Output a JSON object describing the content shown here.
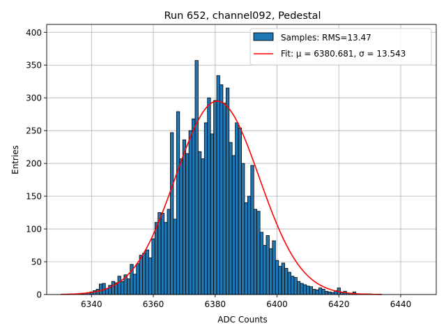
{
  "chart_data": {
    "type": "bar",
    "title": "Run 652, channel092, Pedestal",
    "xlabel": "ADC Counts",
    "ylabel": "Entries",
    "xlim": [
      6325.5,
      6451.5
    ],
    "ylim": [
      0,
      412
    ],
    "xticks": [
      6340,
      6360,
      6380,
      6400,
      6420,
      6440
    ],
    "yticks": [
      0,
      50,
      100,
      150,
      200,
      250,
      300,
      350,
      400
    ],
    "grid": true,
    "legend_position": "top-right",
    "bar_color": "#1f77b4",
    "fit_color": "#ff0000",
    "bins": {
      "x": [
        6337,
        6338,
        6339,
        6340,
        6341,
        6342,
        6343,
        6344,
        6345,
        6346,
        6347,
        6348,
        6349,
        6350,
        6351,
        6352,
        6353,
        6354,
        6355,
        6356,
        6357,
        6358,
        6359,
        6360,
        6361,
        6362,
        6363,
        6364,
        6365,
        6366,
        6367,
        6368,
        6369,
        6370,
        6371,
        6372,
        6373,
        6374,
        6375,
        6376,
        6377,
        6378,
        6379,
        6380,
        6381,
        6382,
        6383,
        6384,
        6385,
        6386,
        6387,
        6388,
        6389,
        6390,
        6391,
        6392,
        6393,
        6394,
        6395,
        6396,
        6397,
        6398,
        6399,
        6400,
        6401,
        6402,
        6403,
        6404,
        6405,
        6406,
        6407,
        6408,
        6409,
        6410,
        6411,
        6412,
        6413,
        6414,
        6415,
        6416,
        6417,
        6418,
        6419,
        6420,
        6421,
        6422,
        6423,
        6424,
        6425,
        6426,
        6427,
        6428,
        6429,
        6430,
        6431,
        6432,
        6433,
        6434
      ],
      "values": [
        1,
        2,
        3,
        4,
        6,
        8,
        16,
        17,
        9,
        14,
        20,
        18,
        28,
        20,
        30,
        24,
        46,
        31,
        47,
        60,
        63,
        68,
        56,
        85,
        110,
        125,
        124,
        110,
        130,
        247,
        115,
        279,
        207,
        236,
        215,
        250,
        268,
        357,
        218,
        207,
        262,
        300,
        245,
        296,
        334,
        320,
        292,
        315,
        232,
        212,
        262,
        254,
        200,
        140,
        150,
        197,
        130,
        127,
        95,
        75,
        90,
        70,
        82,
        52,
        43,
        48,
        40,
        34,
        28,
        26,
        20,
        17,
        15,
        13,
        12,
        8,
        7,
        10,
        8,
        5,
        4,
        3,
        6,
        10,
        3,
        5,
        2,
        2,
        4,
        1,
        1,
        1,
        1,
        1,
        0,
        0,
        0,
        0
      ]
    },
    "series": [
      {
        "name": "Samples: RMS=13.47",
        "type": "histogram"
      },
      {
        "name": "Fit: μ = 6380.681, σ = 13.543",
        "type": "gaussian-fit",
        "mu": 6380.681,
        "sigma": 13.543,
        "amplitude": 295,
        "x_range": [
          6330,
          6434
        ]
      }
    ]
  }
}
